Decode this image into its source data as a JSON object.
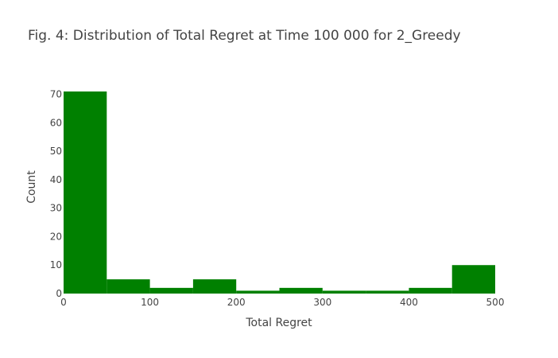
{
  "chart_data": {
    "type": "bar",
    "title": "Fig. 4: Distribution of Total Regret at Time 100 000 for 2_Greedy",
    "xlabel": "Total Regret",
    "ylabel": "Count",
    "bin_edges": [
      0,
      50,
      100,
      150,
      200,
      250,
      300,
      350,
      400,
      450,
      500
    ],
    "values": [
      71,
      5,
      2,
      5,
      1,
      2,
      1,
      1,
      2,
      10
    ],
    "xlim": [
      0,
      500
    ],
    "ylim": [
      0,
      71
    ],
    "x_ticks": [
      0,
      100,
      200,
      300,
      400,
      500
    ],
    "y_ticks": [
      0,
      10,
      20,
      30,
      40,
      50,
      60,
      70
    ],
    "bar_color": "#008000",
    "grid": false,
    "legend": "none"
  }
}
